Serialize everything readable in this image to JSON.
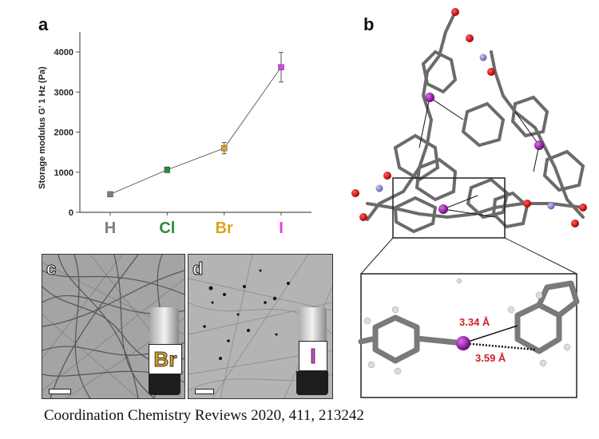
{
  "panels": {
    "a": "a",
    "b": "b",
    "c": "c",
    "d": "d"
  },
  "chart_data": {
    "type": "line",
    "ylabel": "Storage  modulus G’ 1 Hz (Pa)",
    "categories": [
      "H",
      "Cl",
      "Br",
      "I"
    ],
    "category_colors": [
      "#7f7f7f",
      "#2e8b3a",
      "#e0a020",
      "#e040e0"
    ],
    "values": [
      450,
      1060,
      1600,
      3620
    ],
    "errors": [
      30,
      70,
      140,
      370
    ],
    "ylim": [
      0,
      4500
    ],
    "yticks": [
      "0",
      "1000",
      "2000",
      "3000",
      "4000"
    ],
    "ytick_values": [
      0,
      1000,
      2000,
      3000,
      4000
    ],
    "grid": false
  },
  "molecule": {
    "distance_1": "3.34 Å",
    "distance_2": "3.59 Å",
    "label_color": "#d0202a",
    "halogen_color": "#9a1aa8"
  },
  "micrographs": {
    "c_label": "Br",
    "c_label_color": "#e0a020",
    "d_label": "I",
    "d_label_color": "#e040e0"
  },
  "caption": "Coordination Chemistry Reviews 2020, 411, 213242"
}
